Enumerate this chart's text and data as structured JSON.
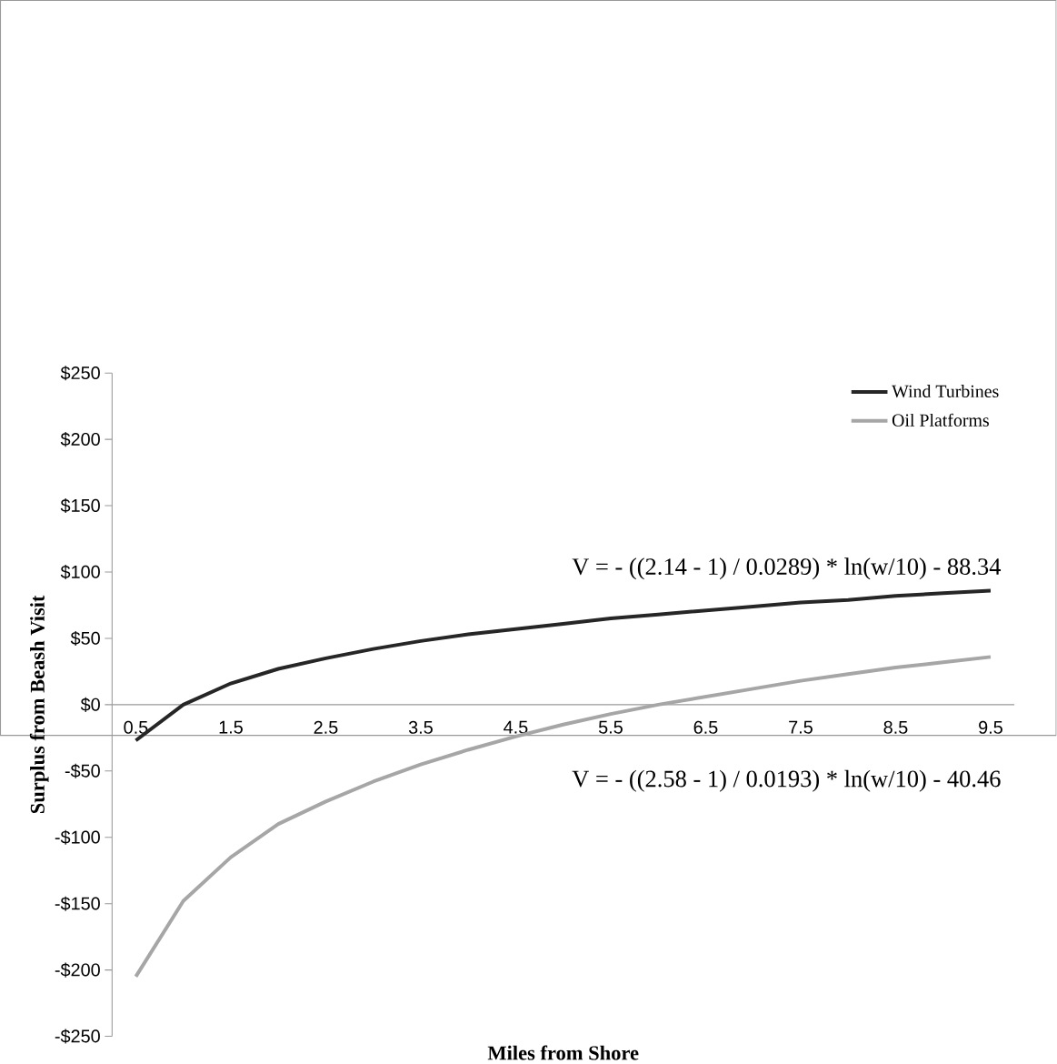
{
  "chart_data": {
    "type": "line",
    "xlabel": "Miles from Shore",
    "ylabel": "Surplus from Beash Visit",
    "categories": [
      "0.5",
      null,
      "1.5",
      null,
      "2.5",
      null,
      "3.5",
      null,
      "4.5",
      null,
      "5.5",
      null,
      "6.5",
      null,
      "7.5",
      null,
      "8.5",
      null,
      "9.5"
    ],
    "series": [
      {
        "name": "Wind Turbines",
        "color": "#262626",
        "values": [
          -27,
          0,
          16,
          27,
          35,
          42,
          48,
          53,
          57,
          61,
          65,
          68,
          71,
          74,
          77,
          79,
          82,
          84,
          86
        ]
      },
      {
        "name": "Oil Platforms",
        "color": "#a6a6a6",
        "values": [
          -205,
          -148,
          -115,
          -90,
          -73,
          -58,
          -45,
          -34,
          -24,
          -15,
          -7,
          0,
          6,
          12,
          18,
          23,
          28,
          32,
          36
        ]
      }
    ],
    "ylim": [
      -250,
      250
    ],
    "yticks": [
      {
        "value": -250,
        "label": "-$250"
      },
      {
        "value": -200,
        "label": "-$200"
      },
      {
        "value": -150,
        "label": "-$150"
      },
      {
        "value": -100,
        "label": "-$100"
      },
      {
        "value": -50,
        "label": "-$50"
      },
      {
        "value": 0,
        "label": "$0"
      },
      {
        "value": 50,
        "label": "$50"
      },
      {
        "value": 100,
        "label": "$100"
      },
      {
        "value": 150,
        "label": "$150"
      },
      {
        "value": 200,
        "label": "$200"
      },
      {
        "value": 250,
        "label": "$250"
      }
    ],
    "legend": "top right",
    "grid": false,
    "marker": "none",
    "line_style": "solid",
    "annotations": [
      "V = - ((2.14 - 1) / 0.0289) * ln(w/10) - 88.34",
      "V = - ((2.58 - 1) / 0.0193) * ln(w/10) - 40.46"
    ]
  }
}
